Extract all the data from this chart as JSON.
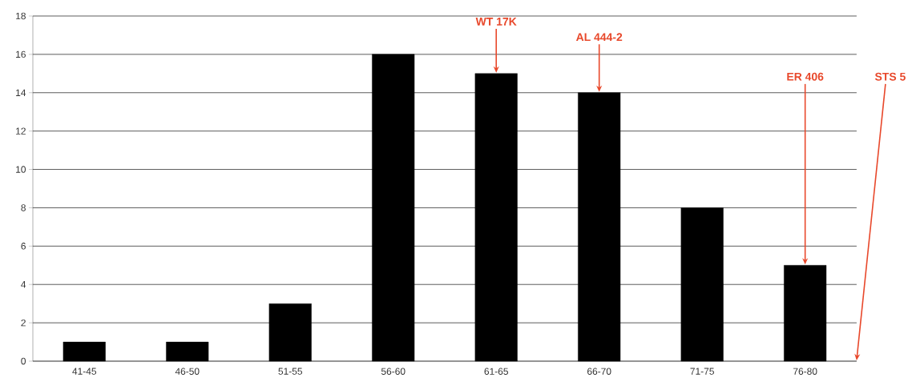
{
  "chart_data": {
    "type": "bar",
    "categories": [
      "41-45",
      "46-50",
      "51-55",
      "56-60",
      "61-65",
      "66-70",
      "71-75",
      "76-80"
    ],
    "values": [
      1,
      1,
      3,
      16,
      15,
      14,
      8,
      5
    ],
    "color": "#000000",
    "ylim": [
      0,
      18
    ],
    "yticks": [
      0,
      2,
      4,
      6,
      8,
      10,
      12,
      14,
      16,
      18
    ],
    "grid": "y",
    "annotations": [
      {
        "text": "WT 17K",
        "x": "61-65",
        "y": 15
      },
      {
        "text": "AL 444-2",
        "x": "66-70",
        "y": 14
      },
      {
        "text": "ER 406",
        "x": "76-80",
        "y": 5
      },
      "STS 5"
    ]
  }
}
